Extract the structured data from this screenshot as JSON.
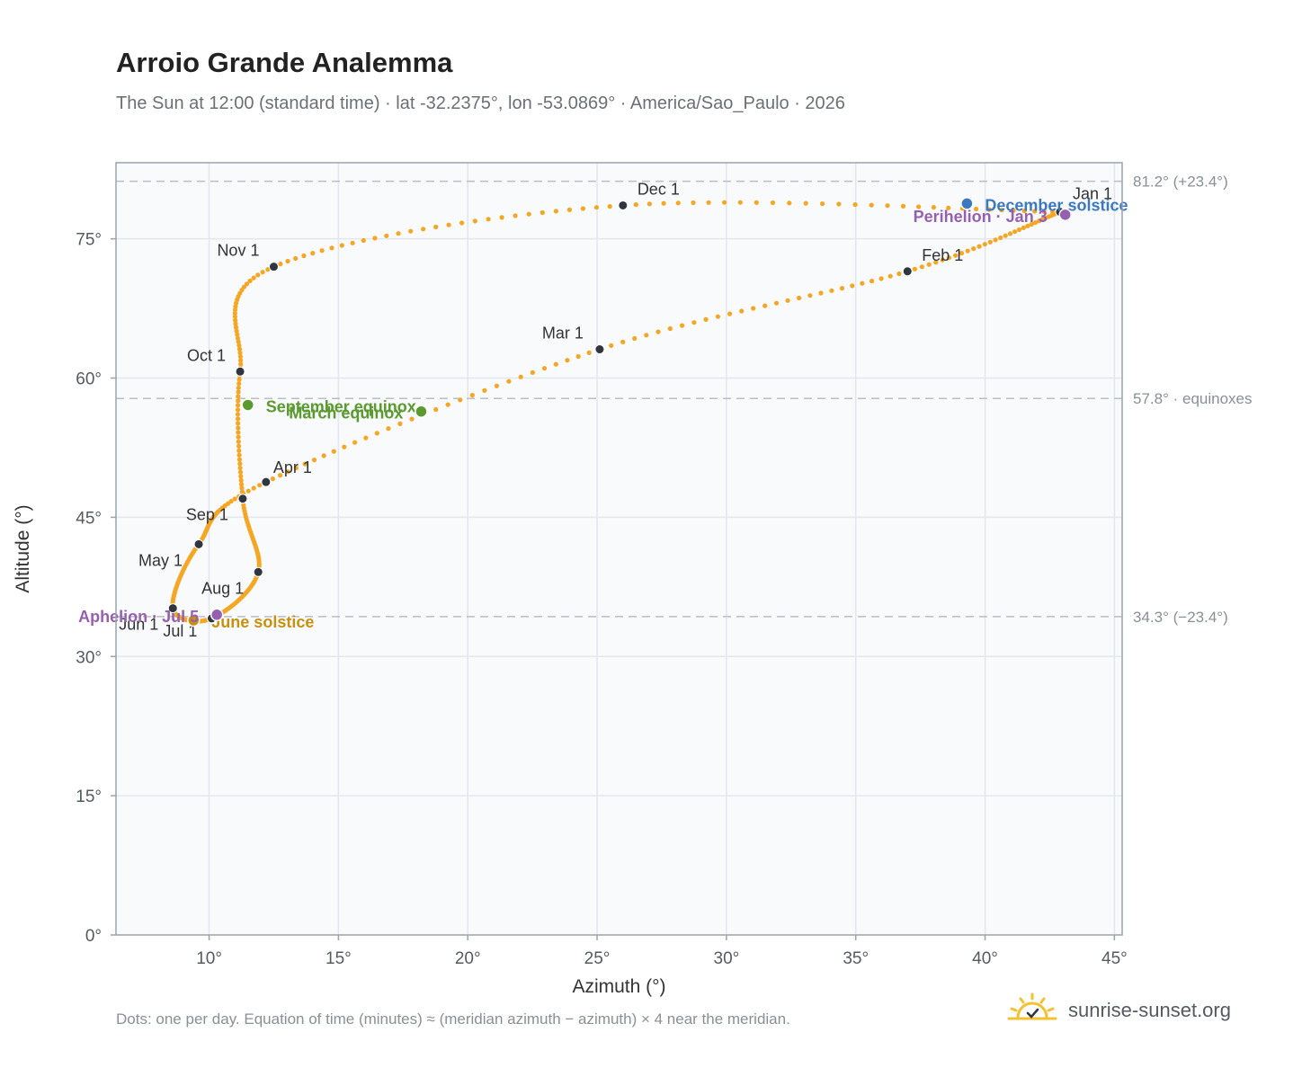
{
  "header": {
    "title": "Arroio Grande Analemma",
    "subtitle": "The Sun at 12:00 (standard time) · lat -32.2375°, lon -53.0869° · America/Sao_Paulo · 2026"
  },
  "footer": {
    "note": "Dots: one per day. Equation of time (minutes) ≈ (meridian azimuth − azimuth) × 4 near the meridian.",
    "brand": "sunrise-sunset.org"
  },
  "colors": {
    "curve": "#f5a623",
    "month_dot": "#2f3640",
    "equinox": "#5a9a2e",
    "june_solstice": "#c8900e",
    "december_solstice": "#3b78c0",
    "apsis": "#9560b0",
    "plot_bg": "#f8fafc",
    "grid": "#e3e7ec",
    "frame": "#9aa3ad",
    "ref_line": "#b9bec5"
  },
  "chart_data": {
    "type": "scatter",
    "title": "Arroio Grande Analemma",
    "xlabel": "Azimuth (°)",
    "ylabel": "Altitude (°)",
    "xlim": [
      6.4,
      45.3
    ],
    "ylim": [
      0,
      83.2
    ],
    "xticks": [
      10,
      15,
      20,
      25,
      30,
      35,
      40,
      45
    ],
    "yticks": [
      0,
      15,
      30,
      45,
      60,
      75
    ],
    "tick_suffix": "°",
    "grid": true,
    "daily_path": [
      {
        "month": "Jan 1",
        "az": 42.9,
        "alt": 77.9
      },
      {
        "month": "Feb 1",
        "az": 37.0,
        "alt": 71.5
      },
      {
        "month": "Mar 1",
        "az": 25.1,
        "alt": 63.1
      },
      {
        "month": "Apr 1",
        "az": 12.2,
        "alt": 48.8
      },
      {
        "month": "May 1",
        "az": 9.6,
        "alt": 42.1
      },
      {
        "month": "Jun 1",
        "az": 8.6,
        "alt": 35.2
      },
      {
        "month": "Jul 1",
        "az": 10.1,
        "alt": 34.1
      },
      {
        "month": "Aug 1",
        "az": 11.9,
        "alt": 39.1
      },
      {
        "month": "Sep 1",
        "az": 11.3,
        "alt": 47.0
      },
      {
        "month": "Oct 1",
        "az": 11.2,
        "alt": 60.7
      },
      {
        "month": "Nov 1",
        "az": 12.5,
        "alt": 72.0
      },
      {
        "month": "Dec 1",
        "az": 26.0,
        "alt": 78.6
      },
      {
        "month": "Jan 1",
        "az": 42.9,
        "alt": 77.9
      }
    ],
    "month_markers": [
      {
        "label": "Jan 1",
        "az": 42.9,
        "alt": 77.9
      },
      {
        "label": "Feb 1",
        "az": 37.0,
        "alt": 71.5
      },
      {
        "label": "Mar 1",
        "az": 25.1,
        "alt": 63.1
      },
      {
        "label": "Apr 1",
        "az": 12.2,
        "alt": 48.8
      },
      {
        "label": "May 1",
        "az": 9.6,
        "alt": 42.1
      },
      {
        "label": "Jun 1",
        "az": 8.6,
        "alt": 35.2
      },
      {
        "label": "Jul 1",
        "az": 10.1,
        "alt": 34.1
      },
      {
        "label": "Aug 1",
        "az": 11.9,
        "alt": 39.1
      },
      {
        "label": "Sep 1",
        "az": 11.3,
        "alt": 47.0
      },
      {
        "label": "Oct 1",
        "az": 11.2,
        "alt": 60.7
      },
      {
        "label": "Nov 1",
        "az": 12.5,
        "alt": 72.0
      },
      {
        "label": "Dec 1",
        "az": 26.0,
        "alt": 78.6
      }
    ],
    "events": [
      {
        "label": "December solstice",
        "az": 39.3,
        "alt": 78.8,
        "color_key": "december_solstice"
      },
      {
        "label": "Perihelion · Jan 3",
        "az": 43.1,
        "alt": 77.6,
        "color_key": "apsis"
      },
      {
        "label": "September equinox",
        "az": 11.5,
        "alt": 57.1,
        "color_key": "equinox"
      },
      {
        "label": "March equinox",
        "az": 18.2,
        "alt": 56.4,
        "color_key": "equinox"
      },
      {
        "label": "June solstice",
        "az": 9.4,
        "alt": 33.9,
        "color_key": "june_solstice"
      },
      {
        "label": "Aphelion · Jul 5",
        "az": 10.3,
        "alt": 34.5,
        "color_key": "apsis"
      }
    ],
    "reference_lines": [
      {
        "alt": 81.2,
        "label": "81.2° (+23.4°)"
      },
      {
        "alt": 57.8,
        "label": "57.8° · equinoxes"
      },
      {
        "alt": 34.3,
        "label": "34.3° (−23.4°)"
      }
    ]
  }
}
